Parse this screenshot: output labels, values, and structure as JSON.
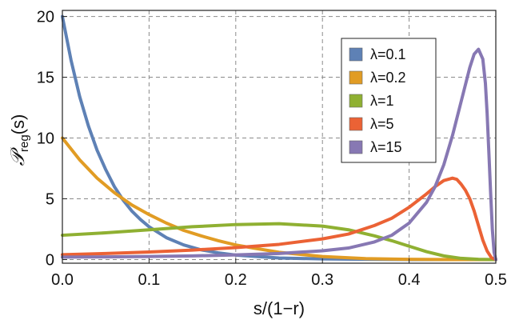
{
  "chart_data": {
    "type": "line",
    "xlabel": "s/(1−r)",
    "ylabel_main": "𝒫",
    "ylabel_sub": "reg",
    "ylabel_tail": "(s)",
    "xlim": [
      0.0,
      0.5
    ],
    "ylim": [
      -0.3,
      20.5
    ],
    "xticks": [
      "0.0",
      "0.1",
      "0.2",
      "0.3",
      "0.4",
      "0.5"
    ],
    "yticks": [
      "0",
      "5",
      "10",
      "15",
      "20"
    ],
    "grid": true,
    "legend_position": "top-right",
    "series": [
      {
        "name": "λ=0.1",
        "color": "#5E81B5",
        "x": [
          0.0,
          0.01,
          0.02,
          0.03,
          0.04,
          0.05,
          0.06,
          0.07,
          0.08,
          0.09,
          0.1,
          0.12,
          0.14,
          0.16,
          0.18,
          0.2,
          0.25,
          0.3,
          0.35,
          0.4,
          0.45,
          0.5
        ],
        "y": [
          20.0,
          16.4,
          13.4,
          11.0,
          9.0,
          7.4,
          6.0,
          4.9,
          4.0,
          3.3,
          2.7,
          1.8,
          1.2,
          0.8,
          0.55,
          0.37,
          0.13,
          0.05,
          0.02,
          0.0,
          0.0,
          0.0
        ]
      },
      {
        "name": "λ=0.2",
        "color": "#E19C24",
        "x": [
          0.0,
          0.02,
          0.04,
          0.06,
          0.08,
          0.1,
          0.12,
          0.14,
          0.16,
          0.18,
          0.2,
          0.22,
          0.25,
          0.3,
          0.35,
          0.4,
          0.45,
          0.5
        ],
        "y": [
          10.0,
          8.2,
          6.7,
          5.5,
          4.5,
          3.7,
          3.0,
          2.4,
          1.95,
          1.55,
          1.2,
          0.95,
          0.6,
          0.25,
          0.08,
          0.02,
          0.0,
          0.0
        ]
      },
      {
        "name": "λ=1",
        "color": "#8FB032",
        "x": [
          0.0,
          0.05,
          0.1,
          0.15,
          0.2,
          0.25,
          0.3,
          0.33,
          0.36,
          0.38,
          0.4,
          0.42,
          0.44,
          0.46,
          0.48,
          0.5
        ],
        "y": [
          2.0,
          2.2,
          2.45,
          2.7,
          2.88,
          2.95,
          2.75,
          2.45,
          1.95,
          1.55,
          1.1,
          0.65,
          0.3,
          0.1,
          0.02,
          0.0
        ]
      },
      {
        "name": "λ=5",
        "color": "#EB6235",
        "x": [
          0.0,
          0.05,
          0.1,
          0.15,
          0.2,
          0.25,
          0.3,
          0.33,
          0.36,
          0.38,
          0.4,
          0.42,
          0.43,
          0.44,
          0.45,
          0.455,
          0.46,
          0.465,
          0.47,
          0.475,
          0.48,
          0.485,
          0.49,
          0.495,
          0.5
        ],
        "y": [
          0.4,
          0.5,
          0.62,
          0.78,
          0.98,
          1.25,
          1.7,
          2.1,
          2.8,
          3.4,
          4.3,
          5.4,
          6.0,
          6.5,
          6.7,
          6.6,
          6.2,
          5.7,
          5.0,
          4.0,
          2.8,
          1.6,
          0.7,
          0.15,
          0.0
        ]
      },
      {
        "name": "λ=15",
        "color": "#8778B3",
        "x": [
          0.0,
          0.05,
          0.1,
          0.15,
          0.2,
          0.25,
          0.3,
          0.33,
          0.36,
          0.38,
          0.4,
          0.42,
          0.43,
          0.44,
          0.45,
          0.46,
          0.47,
          0.475,
          0.48,
          0.485,
          0.488,
          0.49,
          0.492,
          0.494,
          0.496,
          0.498,
          0.5
        ],
        "y": [
          0.2,
          0.22,
          0.25,
          0.3,
          0.38,
          0.5,
          0.72,
          0.95,
          1.45,
          2.0,
          3.0,
          4.7,
          6.0,
          7.8,
          10.2,
          13.0,
          15.8,
          16.9,
          17.3,
          16.5,
          14.5,
          12.0,
          8.8,
          5.5,
          2.5,
          0.6,
          0.0
        ]
      }
    ]
  }
}
